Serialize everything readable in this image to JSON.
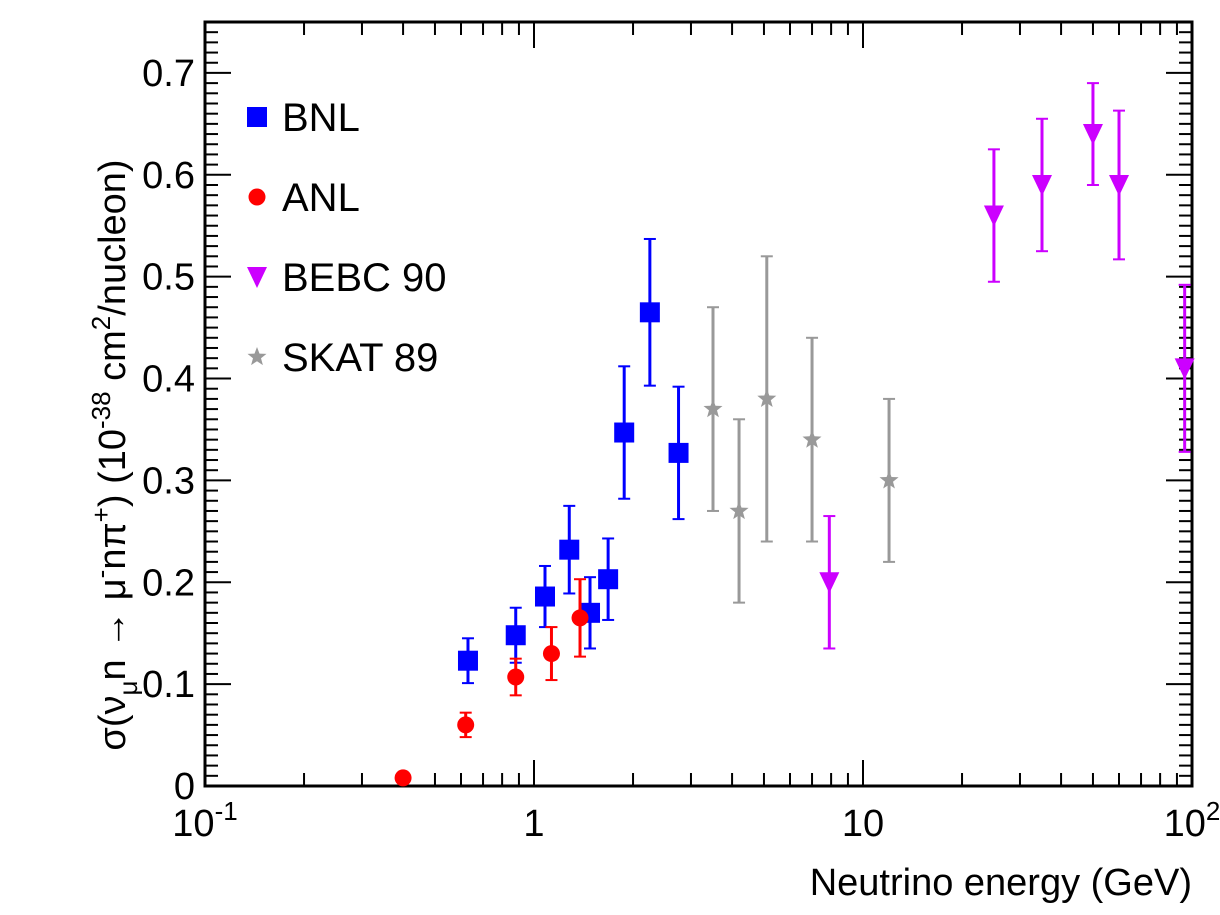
{
  "chart_data": {
    "type": "scatter",
    "title": "",
    "xlabel": "Neutrino energy (GeV)",
    "ylabel": {
      "prefix": "σ(ν",
      "sub1": "μ",
      "mid1": "n → μ",
      "sup1": "-",
      "mid2": "nπ",
      "sup2": "+",
      "mid3": ") (10",
      "sup3": "-38",
      "mid4": " cm",
      "sup4": "2",
      "suffix": "/nucleon)"
    },
    "x_scale": "log",
    "xlim": [
      0.1,
      100
    ],
    "ylim": [
      0,
      0.75
    ],
    "grid": false,
    "legend_position": "top-left",
    "x_tick_labels": [
      {
        "value": 0.1,
        "base": "10",
        "exp": "-1"
      },
      {
        "value": 1,
        "base": "1",
        "exp": ""
      },
      {
        "value": 10,
        "base": "10",
        "exp": ""
      },
      {
        "value": 100,
        "base": "10",
        "exp": "2"
      }
    ],
    "y_tick_labels": [
      {
        "value": 0,
        "label": "0"
      },
      {
        "value": 0.1,
        "label": "0.1"
      },
      {
        "value": 0.2,
        "label": "0.2"
      },
      {
        "value": 0.3,
        "label": "0.3"
      },
      {
        "value": 0.4,
        "label": "0.4"
      },
      {
        "value": 0.5,
        "label": "0.5"
      },
      {
        "value": 0.6,
        "label": "0.6"
      },
      {
        "value": 0.7,
        "label": "0.7"
      }
    ],
    "series": [
      {
        "name": "BNL",
        "marker": "square",
        "color": "#0000ff",
        "points": [
          {
            "x": 0.63,
            "y": 0.123,
            "err": 0.022
          },
          {
            "x": 0.88,
            "y": 0.148,
            "err": 0.027
          },
          {
            "x": 1.08,
            "y": 0.186,
            "err": 0.03
          },
          {
            "x": 1.28,
            "y": 0.232,
            "err": 0.043
          },
          {
            "x": 1.48,
            "y": 0.17,
            "err": 0.035
          },
          {
            "x": 1.68,
            "y": 0.203,
            "err": 0.04
          },
          {
            "x": 1.88,
            "y": 0.347,
            "err": 0.065
          },
          {
            "x": 2.25,
            "y": 0.465,
            "err": 0.072
          },
          {
            "x": 2.75,
            "y": 0.327,
            "err": 0.065
          }
        ]
      },
      {
        "name": "ANL",
        "marker": "circle",
        "color": "#ff0000",
        "points": [
          {
            "x": 0.4,
            "y": 0.008,
            "err": 0.002
          },
          {
            "x": 0.62,
            "y": 0.06,
            "err": 0.012
          },
          {
            "x": 0.88,
            "y": 0.107,
            "err": 0.018
          },
          {
            "x": 1.13,
            "y": 0.13,
            "err": 0.026
          },
          {
            "x": 1.38,
            "y": 0.165,
            "err": 0.038
          }
        ]
      },
      {
        "name": "BEBC 90",
        "marker": "triangle-down",
        "color": "#cc00ff",
        "points": [
          {
            "x": 7.9,
            "y": 0.2,
            "err": 0.065
          },
          {
            "x": 25,
            "y": 0.56,
            "err": 0.065
          },
          {
            "x": 35,
            "y": 0.59,
            "err": 0.065
          },
          {
            "x": 50,
            "y": 0.64,
            "err": 0.05
          },
          {
            "x": 60,
            "y": 0.59,
            "err": 0.073
          },
          {
            "x": 95,
            "y": 0.41,
            "err": 0.082
          }
        ]
      },
      {
        "name": "SKAT 89",
        "marker": "star",
        "color": "#999999",
        "points": [
          {
            "x": 3.5,
            "y": 0.37,
            "err": 0.1
          },
          {
            "x": 4.2,
            "y": 0.27,
            "err": 0.09
          },
          {
            "x": 5.1,
            "y": 0.38,
            "err": 0.14
          },
          {
            "x": 7.0,
            "y": 0.34,
            "err": 0.1
          },
          {
            "x": 12,
            "y": 0.3,
            "err": 0.08
          }
        ]
      }
    ]
  }
}
